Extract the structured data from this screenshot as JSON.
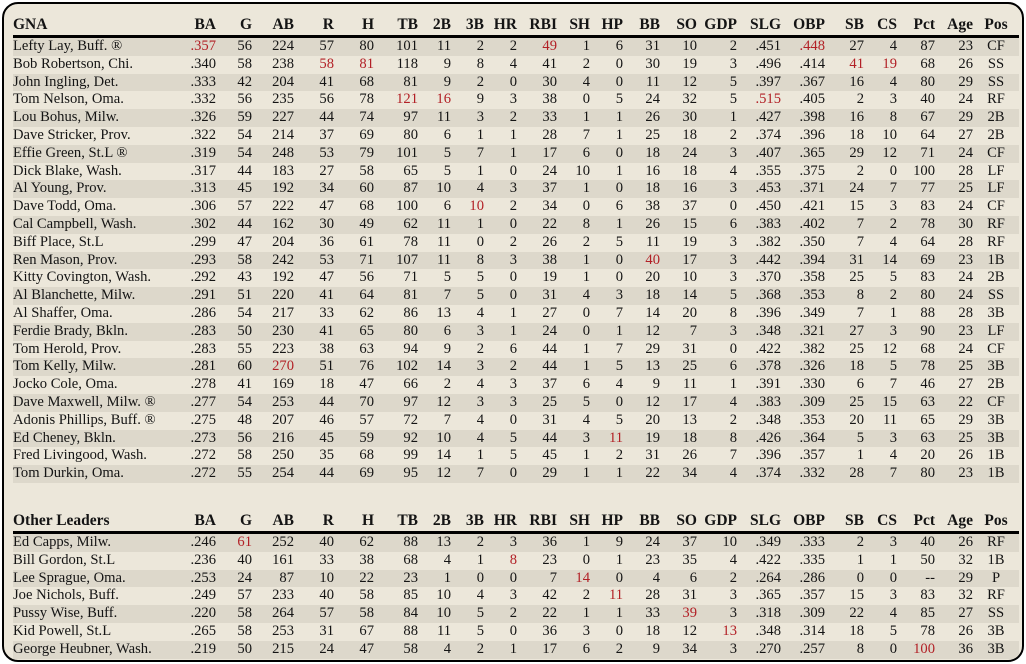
{
  "colors": {
    "panel_background": "#ece7da",
    "row_stripe": "#ddd8cb",
    "leader_highlight_red": "#b22026",
    "text": "#141414",
    "border": "#000000"
  },
  "columns": [
    "BA",
    "G",
    "AB",
    "R",
    "H",
    "TB",
    "2B",
    "3B",
    "HR",
    "RBI",
    "SH",
    "HP",
    "BB",
    "SO",
    "GDP",
    "SLG",
    "OBP",
    "SB",
    "CS",
    "Pct",
    "Age",
    "Pos"
  ],
  "sections": [
    {
      "title": "GNA",
      "rows": [
        {
          "name": "Lefty Lay, Buff. ®",
          "stats": [
            ".357",
            "56",
            "224",
            "57",
            "80",
            "101",
            "11",
            "2",
            "2",
            "49",
            "1",
            "6",
            "31",
            "10",
            "2",
            ".451",
            ".448",
            "27",
            "4",
            "87",
            "23",
            "CF"
          ],
          "red": [
            0,
            9,
            16
          ]
        },
        {
          "name": "Bob Robertson, Chi.",
          "stats": [
            ".340",
            "58",
            "238",
            "58",
            "81",
            "118",
            "9",
            "8",
            "4",
            "41",
            "2",
            "0",
            "30",
            "19",
            "3",
            ".496",
            ".414",
            "41",
            "19",
            "68",
            "26",
            "SS"
          ],
          "red": [
            3,
            4,
            17,
            18
          ]
        },
        {
          "name": "John Ingling, Det.",
          "stats": [
            ".333",
            "42",
            "204",
            "41",
            "68",
            "81",
            "9",
            "2",
            "0",
            "30",
            "4",
            "0",
            "11",
            "12",
            "5",
            ".397",
            ".367",
            "16",
            "4",
            "80",
            "29",
            "SS"
          ],
          "red": []
        },
        {
          "name": "Tom Nelson, Oma.",
          "stats": [
            ".332",
            "56",
            "235",
            "56",
            "78",
            "121",
            "16",
            "9",
            "3",
            "38",
            "0",
            "5",
            "24",
            "32",
            "5",
            ".515",
            ".405",
            "2",
            "3",
            "40",
            "24",
            "RF"
          ],
          "red": [
            5,
            6,
            15
          ]
        },
        {
          "name": "Lou Bohus, Milw.",
          "stats": [
            ".326",
            "59",
            "227",
            "44",
            "74",
            "97",
            "11",
            "3",
            "2",
            "33",
            "1",
            "1",
            "26",
            "30",
            "1",
            ".427",
            ".398",
            "16",
            "8",
            "67",
            "29",
            "2B"
          ],
          "red": []
        },
        {
          "name": "Dave Stricker, Prov.",
          "stats": [
            ".322",
            "54",
            "214",
            "37",
            "69",
            "80",
            "6",
            "1",
            "1",
            "28",
            "7",
            "1",
            "25",
            "18",
            "2",
            ".374",
            ".396",
            "18",
            "10",
            "64",
            "27",
            "2B"
          ],
          "red": []
        },
        {
          "name": "Effie Green, St.L ®",
          "stats": [
            ".319",
            "54",
            "248",
            "53",
            "79",
            "101",
            "5",
            "7",
            "1",
            "17",
            "6",
            "0",
            "18",
            "24",
            "3",
            ".407",
            ".365",
            "29",
            "12",
            "71",
            "24",
            "CF"
          ],
          "red": []
        },
        {
          "name": "Dick Blake, Wash.",
          "stats": [
            ".317",
            "44",
            "183",
            "27",
            "58",
            "65",
            "5",
            "1",
            "0",
            "24",
            "10",
            "1",
            "16",
            "18",
            "4",
            ".355",
            ".375",
            "2",
            "0",
            "100",
            "28",
            "LF"
          ],
          "red": []
        },
        {
          "name": "Al Young, Prov.",
          "stats": [
            ".313",
            "45",
            "192",
            "34",
            "60",
            "87",
            "10",
            "4",
            "3",
            "37",
            "1",
            "0",
            "18",
            "16",
            "3",
            ".453",
            ".371",
            "24",
            "7",
            "77",
            "25",
            "LF"
          ],
          "red": []
        },
        {
          "name": "Dave Todd, Oma.",
          "stats": [
            ".306",
            "57",
            "222",
            "47",
            "68",
            "100",
            "6",
            "10",
            "2",
            "34",
            "0",
            "6",
            "38",
            "37",
            "0",
            ".450",
            ".421",
            "15",
            "3",
            "83",
            "24",
            "CF"
          ],
          "red": [
            7
          ]
        },
        {
          "name": "Cal Campbell, Wash.",
          "stats": [
            ".302",
            "44",
            "162",
            "30",
            "49",
            "62",
            "11",
            "1",
            "0",
            "22",
            "8",
            "1",
            "26",
            "15",
            "6",
            ".383",
            ".402",
            "7",
            "2",
            "78",
            "30",
            "RF"
          ],
          "red": []
        },
        {
          "name": "Biff Place, St.L",
          "stats": [
            ".299",
            "47",
            "204",
            "36",
            "61",
            "78",
            "11",
            "0",
            "2",
            "26",
            "2",
            "5",
            "11",
            "19",
            "3",
            ".382",
            ".350",
            "7",
            "4",
            "64",
            "28",
            "RF"
          ],
          "red": []
        },
        {
          "name": "Ren Mason, Prov.",
          "stats": [
            ".293",
            "58",
            "242",
            "53",
            "71",
            "107",
            "11",
            "8",
            "3",
            "38",
            "1",
            "0",
            "40",
            "17",
            "3",
            ".442",
            ".394",
            "31",
            "14",
            "69",
            "23",
            "1B"
          ],
          "red": [
            12
          ]
        },
        {
          "name": "Kitty Covington, Wash.",
          "stats": [
            ".292",
            "43",
            "192",
            "47",
            "56",
            "71",
            "5",
            "5",
            "0",
            "19",
            "1",
            "0",
            "20",
            "10",
            "3",
            ".370",
            ".358",
            "25",
            "5",
            "83",
            "24",
            "2B"
          ],
          "red": []
        },
        {
          "name": "Al Blanchette, Milw.",
          "stats": [
            ".291",
            "51",
            "220",
            "41",
            "64",
            "81",
            "7",
            "5",
            "0",
            "31",
            "4",
            "3",
            "18",
            "14",
            "5",
            ".368",
            ".353",
            "8",
            "2",
            "80",
            "24",
            "SS"
          ],
          "red": []
        },
        {
          "name": "Al Shaffer, Oma.",
          "stats": [
            ".286",
            "54",
            "217",
            "33",
            "62",
            "86",
            "13",
            "4",
            "1",
            "27",
            "0",
            "7",
            "14",
            "20",
            "8",
            ".396",
            ".349",
            "7",
            "1",
            "88",
            "28",
            "3B"
          ],
          "red": []
        },
        {
          "name": "Ferdie Brady, Bkln.",
          "stats": [
            ".283",
            "50",
            "230",
            "41",
            "65",
            "80",
            "6",
            "3",
            "1",
            "24",
            "0",
            "1",
            "12",
            "7",
            "3",
            ".348",
            ".321",
            "27",
            "3",
            "90",
            "23",
            "LF"
          ],
          "red": []
        },
        {
          "name": "Tom Herold, Prov.",
          "stats": [
            ".283",
            "55",
            "223",
            "38",
            "63",
            "94",
            "9",
            "2",
            "6",
            "44",
            "1",
            "7",
            "29",
            "31",
            "0",
            ".422",
            ".382",
            "25",
            "12",
            "68",
            "24",
            "CF"
          ],
          "red": []
        },
        {
          "name": "Tom Kelly, Milw.",
          "stats": [
            ".281",
            "60",
            "270",
            "51",
            "76",
            "102",
            "14",
            "3",
            "2",
            "44",
            "1",
            "5",
            "13",
            "25",
            "6",
            ".378",
            ".326",
            "18",
            "5",
            "78",
            "25",
            "3B"
          ],
          "red": [
            2
          ]
        },
        {
          "name": "Jocko Cole, Oma.",
          "stats": [
            ".278",
            "41",
            "169",
            "18",
            "47",
            "66",
            "2",
            "4",
            "3",
            "37",
            "6",
            "4",
            "9",
            "11",
            "1",
            ".391",
            ".330",
            "6",
            "7",
            "46",
            "27",
            "2B"
          ],
          "red": []
        },
        {
          "name": "Dave Maxwell, Milw. ®",
          "stats": [
            ".277",
            "54",
            "253",
            "44",
            "70",
            "97",
            "12",
            "3",
            "3",
            "25",
            "5",
            "0",
            "12",
            "17",
            "4",
            ".383",
            ".309",
            "25",
            "15",
            "63",
            "22",
            "CF"
          ],
          "red": []
        },
        {
          "name": "Adonis Phillips, Buff. ®",
          "stats": [
            ".275",
            "48",
            "207",
            "46",
            "57",
            "72",
            "7",
            "4",
            "0",
            "31",
            "4",
            "5",
            "20",
            "13",
            "2",
            ".348",
            ".353",
            "20",
            "11",
            "65",
            "29",
            "3B"
          ],
          "red": []
        },
        {
          "name": "Ed Cheney, Bkln.",
          "stats": [
            ".273",
            "56",
            "216",
            "45",
            "59",
            "92",
            "10",
            "4",
            "5",
            "44",
            "3",
            "11",
            "19",
            "18",
            "8",
            ".426",
            ".364",
            "5",
            "3",
            "63",
            "25",
            "3B"
          ],
          "red": [
            11
          ]
        },
        {
          "name": "Fred Livingood, Wash.",
          "stats": [
            ".272",
            "58",
            "250",
            "35",
            "68",
            "99",
            "14",
            "1",
            "5",
            "45",
            "1",
            "2",
            "31",
            "26",
            "7",
            ".396",
            ".357",
            "1",
            "4",
            "20",
            "26",
            "1B"
          ],
          "red": []
        },
        {
          "name": "Tom Durkin, Oma.",
          "stats": [
            ".272",
            "55",
            "254",
            "44",
            "69",
            "95",
            "12",
            "7",
            "0",
            "29",
            "1",
            "1",
            "22",
            "34",
            "4",
            ".374",
            ".332",
            "28",
            "7",
            "80",
            "23",
            "1B"
          ],
          "red": []
        }
      ]
    },
    {
      "title": "Other Leaders",
      "rows": [
        {
          "name": "Ed Capps, Milw.",
          "stats": [
            ".246",
            "61",
            "252",
            "40",
            "62",
            "88",
            "13",
            "2",
            "3",
            "36",
            "1",
            "9",
            "24",
            "37",
            "10",
            ".349",
            ".333",
            "2",
            "3",
            "40",
            "26",
            "RF"
          ],
          "red": [
            1
          ]
        },
        {
          "name": "Bill Gordon, St.L",
          "stats": [
            ".236",
            "40",
            "161",
            "33",
            "38",
            "68",
            "4",
            "1",
            "8",
            "23",
            "0",
            "1",
            "23",
            "35",
            "4",
            ".422",
            ".335",
            "1",
            "1",
            "50",
            "32",
            "1B"
          ],
          "red": [
            8
          ]
        },
        {
          "name": "Lee Sprague, Oma.",
          "stats": [
            ".253",
            "24",
            "87",
            "10",
            "22",
            "23",
            "1",
            "0",
            "0",
            "7",
            "14",
            "0",
            "4",
            "6",
            "2",
            ".264",
            ".286",
            "0",
            "0",
            "--",
            "29",
            "P"
          ],
          "red": [
            10
          ]
        },
        {
          "name": "Joe Nichols, Buff.",
          "stats": [
            ".249",
            "57",
            "233",
            "40",
            "58",
            "85",
            "10",
            "4",
            "3",
            "42",
            "2",
            "11",
            "28",
            "31",
            "3",
            ".365",
            ".357",
            "15",
            "3",
            "83",
            "32",
            "RF"
          ],
          "red": [
            11
          ]
        },
        {
          "name": "Pussy Wise, Buff.",
          "stats": [
            ".220",
            "58",
            "264",
            "57",
            "58",
            "84",
            "10",
            "5",
            "2",
            "22",
            "1",
            "1",
            "33",
            "39",
            "3",
            ".318",
            ".309",
            "22",
            "4",
            "85",
            "27",
            "SS"
          ],
          "red": [
            13
          ]
        },
        {
          "name": "Kid Powell, St.L",
          "stats": [
            ".265",
            "58",
            "253",
            "31",
            "67",
            "88",
            "11",
            "5",
            "0",
            "36",
            "3",
            "0",
            "18",
            "12",
            "13",
            ".348",
            ".314",
            "18",
            "5",
            "78",
            "26",
            "3B"
          ],
          "red": [
            14
          ]
        },
        {
          "name": "George Heubner, Wash.",
          "stats": [
            ".219",
            "50",
            "215",
            "24",
            "47",
            "58",
            "4",
            "2",
            "1",
            "17",
            "6",
            "2",
            "9",
            "34",
            "3",
            ".270",
            ".257",
            "8",
            "0",
            "100",
            "36",
            "3B"
          ],
          "red": [
            19
          ]
        }
      ]
    }
  ]
}
